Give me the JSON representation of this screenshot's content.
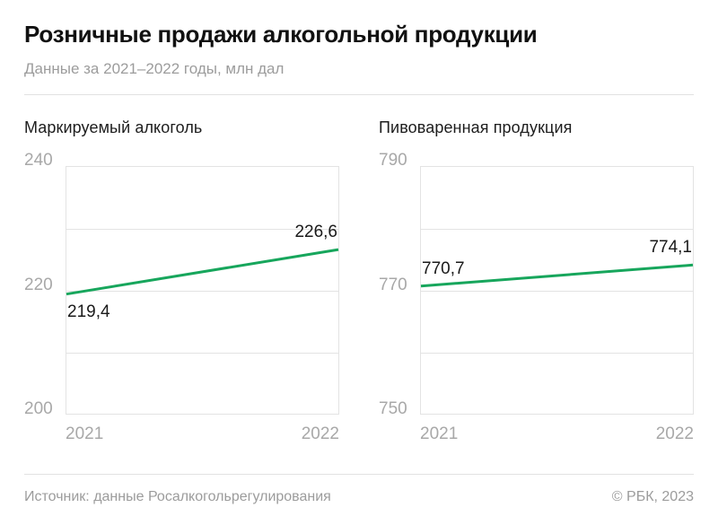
{
  "header": {
    "title": "Розничные продажи алкогольной продукции",
    "subtitle": "Данные за 2021–2022 годы, млн дал"
  },
  "footer": {
    "source": "Источник: данные Росалкогольрегулирования",
    "copyright": "© РБК, 2023"
  },
  "colors": {
    "accent_line": "#17a65c",
    "grid": "#e3e3e3",
    "axis_text": "#a8a8a8",
    "muted_text": "#9c9c9c",
    "title_text": "#111111"
  },
  "chart_data": [
    {
      "type": "line",
      "title": "Маркируемый алкоголь",
      "x": [
        2021,
        2022
      ],
      "values": [
        219.4,
        226.6
      ],
      "value_labels": [
        "219,4",
        "226,6"
      ],
      "value_label_positions": [
        "below",
        "above"
      ],
      "ylim": [
        200,
        240
      ],
      "ytick_labels": [
        "240",
        "220",
        "200"
      ],
      "xtick_labels": [
        "2021",
        "2022"
      ],
      "grid": true,
      "legend": false
    },
    {
      "type": "line",
      "title": "Пивоваренная продукция",
      "x": [
        2021,
        2022
      ],
      "values": [
        770.7,
        774.1
      ],
      "value_labels": [
        "770,7",
        "774,1"
      ],
      "value_label_positions": [
        "above",
        "above"
      ],
      "ylim": [
        750,
        790
      ],
      "ytick_labels": [
        "790",
        "770",
        "750"
      ],
      "xtick_labels": [
        "2021",
        "2022"
      ],
      "grid": true,
      "legend": false
    }
  ]
}
